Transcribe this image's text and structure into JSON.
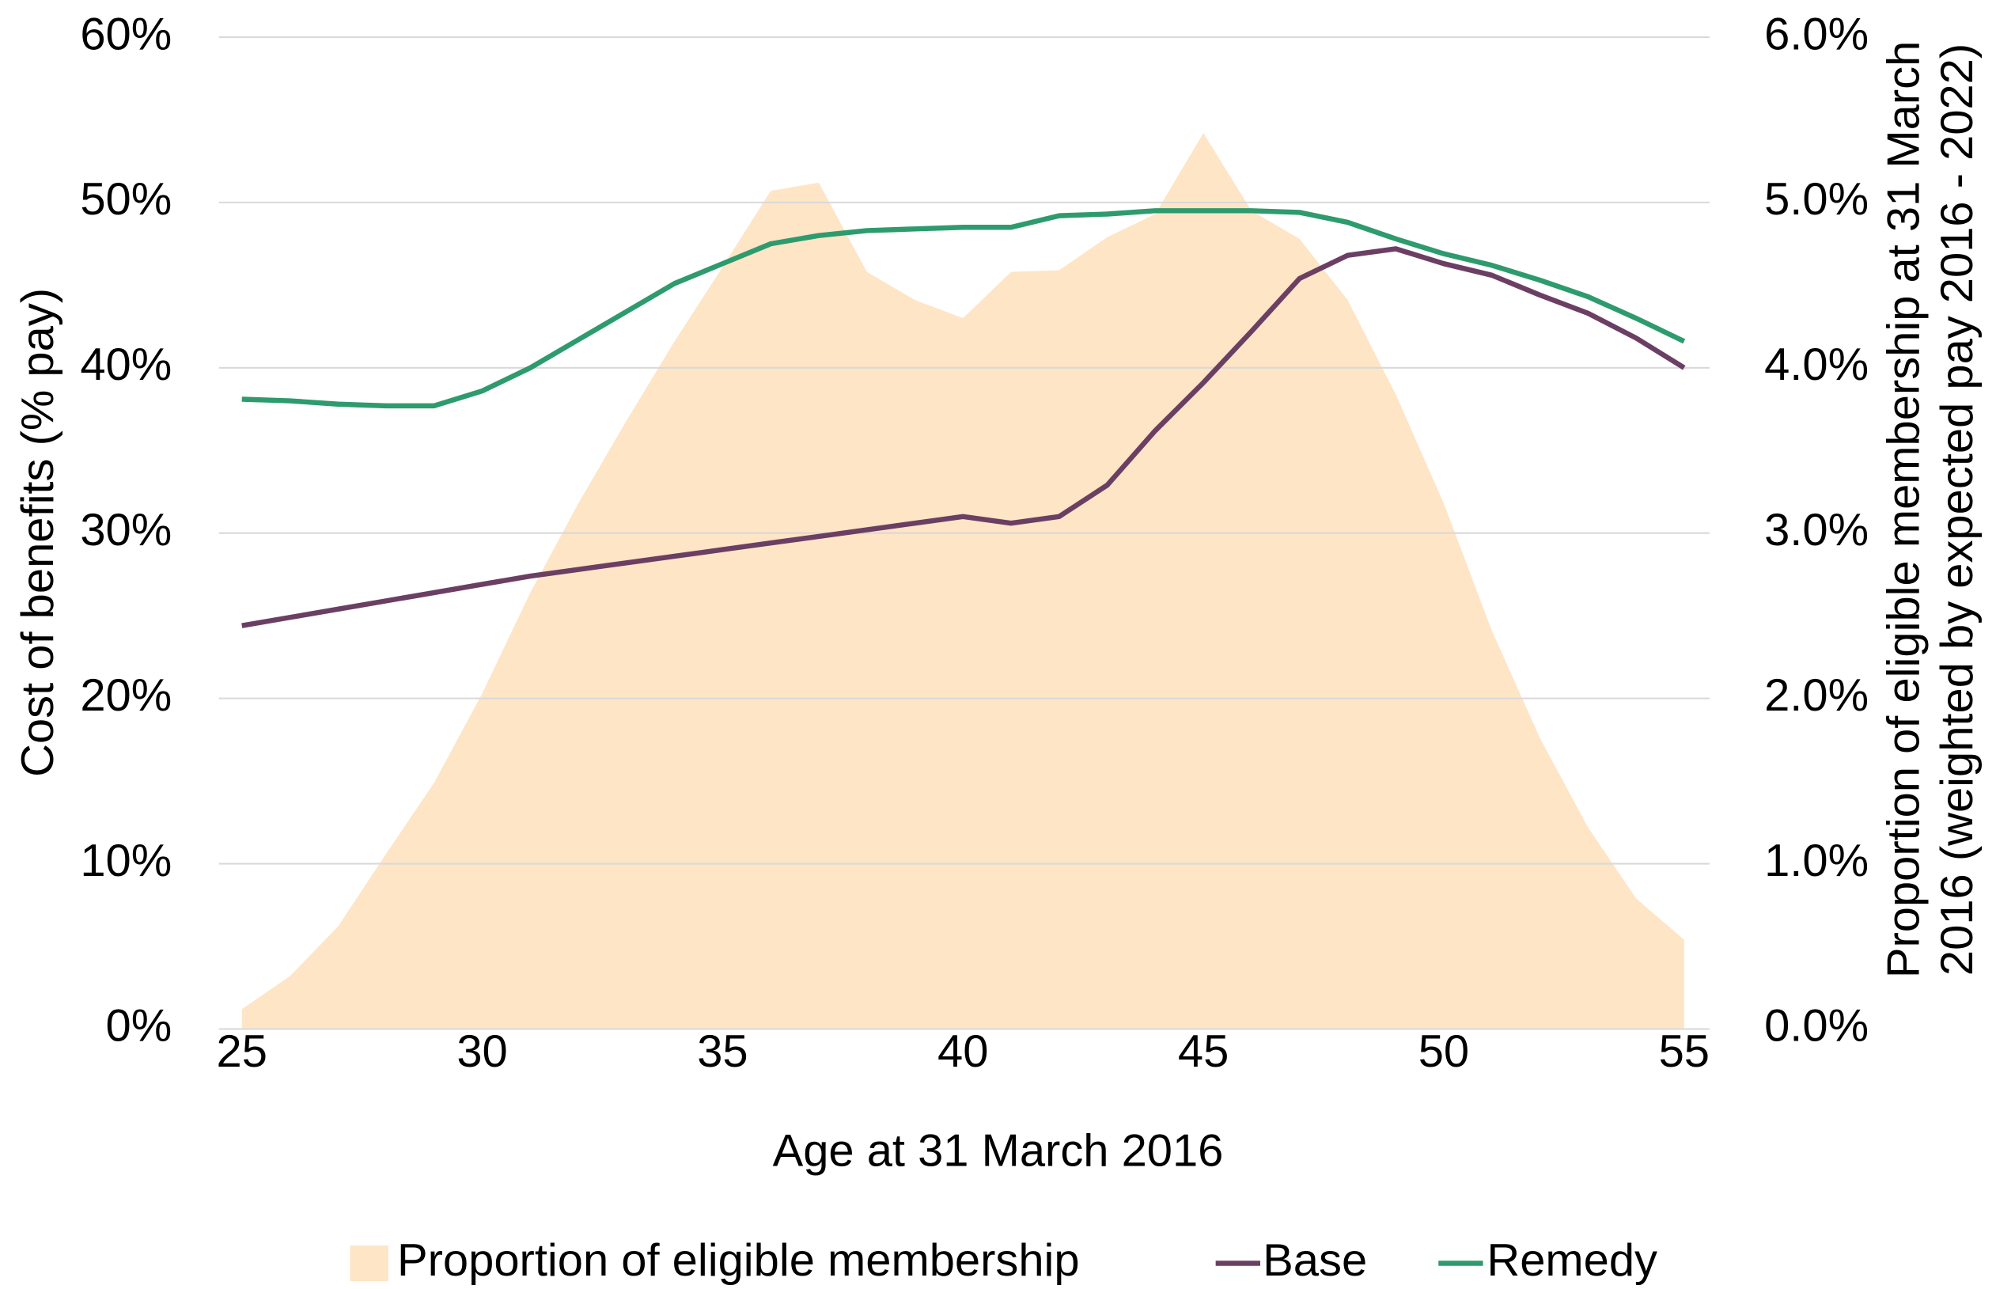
{
  "chart_data": {
    "type": "line",
    "x_label": "Age at 31 March 2016",
    "y_label": "Cost of benefits (% pay)",
    "y2_label": [
      "Proportion of eligible membership at 31 March",
      "2016 (weighted by expected pay 2016 - 2022)"
    ],
    "x": [
      25,
      26,
      27,
      28,
      29,
      30,
      31,
      32,
      33,
      34,
      35,
      36,
      37,
      38,
      39,
      40,
      41,
      42,
      43,
      44,
      45,
      46,
      47,
      48,
      49,
      50,
      51,
      52,
      53,
      54,
      55
    ],
    "xlim": [
      25,
      55
    ],
    "xticks": [
      25,
      30,
      35,
      40,
      45,
      50,
      55
    ],
    "ylim": [
      0,
      60
    ],
    "yticks": [
      {
        "value": 0,
        "label": "0%"
      },
      {
        "value": 10,
        "label": "10%"
      },
      {
        "value": 20,
        "label": "20%"
      },
      {
        "value": 30,
        "label": "30%"
      },
      {
        "value": 40,
        "label": "40%"
      },
      {
        "value": 50,
        "label": "50%"
      },
      {
        "value": 60,
        "label": "60%"
      }
    ],
    "y2lim": [
      0,
      6
    ],
    "y2ticks": [
      {
        "value": 0,
        "label": "0.0%"
      },
      {
        "value": 1,
        "label": "1.0%"
      },
      {
        "value": 2,
        "label": "2.0%"
      },
      {
        "value": 3,
        "label": "3.0%"
      },
      {
        "value": 4,
        "label": "4.0%"
      },
      {
        "value": 5,
        "label": "5.0%"
      },
      {
        "value": 6,
        "label": "6.0%"
      }
    ],
    "grid": true,
    "legend": "bottom",
    "series": [
      {
        "name": "Proportion of eligible membership",
        "type": "area",
        "axis": "y2",
        "color": "#fde5c6",
        "values": [
          0.12,
          0.32,
          0.62,
          1.06,
          1.49,
          2.03,
          2.64,
          3.18,
          3.68,
          4.16,
          4.61,
          5.07,
          5.12,
          4.58,
          4.41,
          4.3,
          4.58,
          4.59,
          4.79,
          4.93,
          5.42,
          4.95,
          4.78,
          4.41,
          3.84,
          3.18,
          2.41,
          1.76,
          1.22,
          0.79,
          0.54
        ]
      },
      {
        "name": "Base",
        "type": "line",
        "color": "#6b3f63",
        "values": [
          24.4,
          24.9,
          25.4,
          25.9,
          26.4,
          26.9,
          27.4,
          27.8,
          28.2,
          28.6,
          29.0,
          29.4,
          29.8,
          30.2,
          30.6,
          31.0,
          30.6,
          31.0,
          32.9,
          36.2,
          39.1,
          42.2,
          45.4,
          46.8,
          47.2,
          46.3,
          45.6,
          44.4,
          43.3,
          41.8,
          40.0
        ]
      },
      {
        "name": "Remedy",
        "type": "line",
        "color": "#2e9b6e",
        "values": [
          38.1,
          38.0,
          37.8,
          37.7,
          37.7,
          38.6,
          40.0,
          41.7,
          43.4,
          45.1,
          46.3,
          47.5,
          48.0,
          48.3,
          48.4,
          48.5,
          48.5,
          49.2,
          49.3,
          49.5,
          49.5,
          49.5,
          49.4,
          48.8,
          47.8,
          46.9,
          46.2,
          45.3,
          44.3,
          43.0,
          41.6
        ]
      }
    ]
  }
}
